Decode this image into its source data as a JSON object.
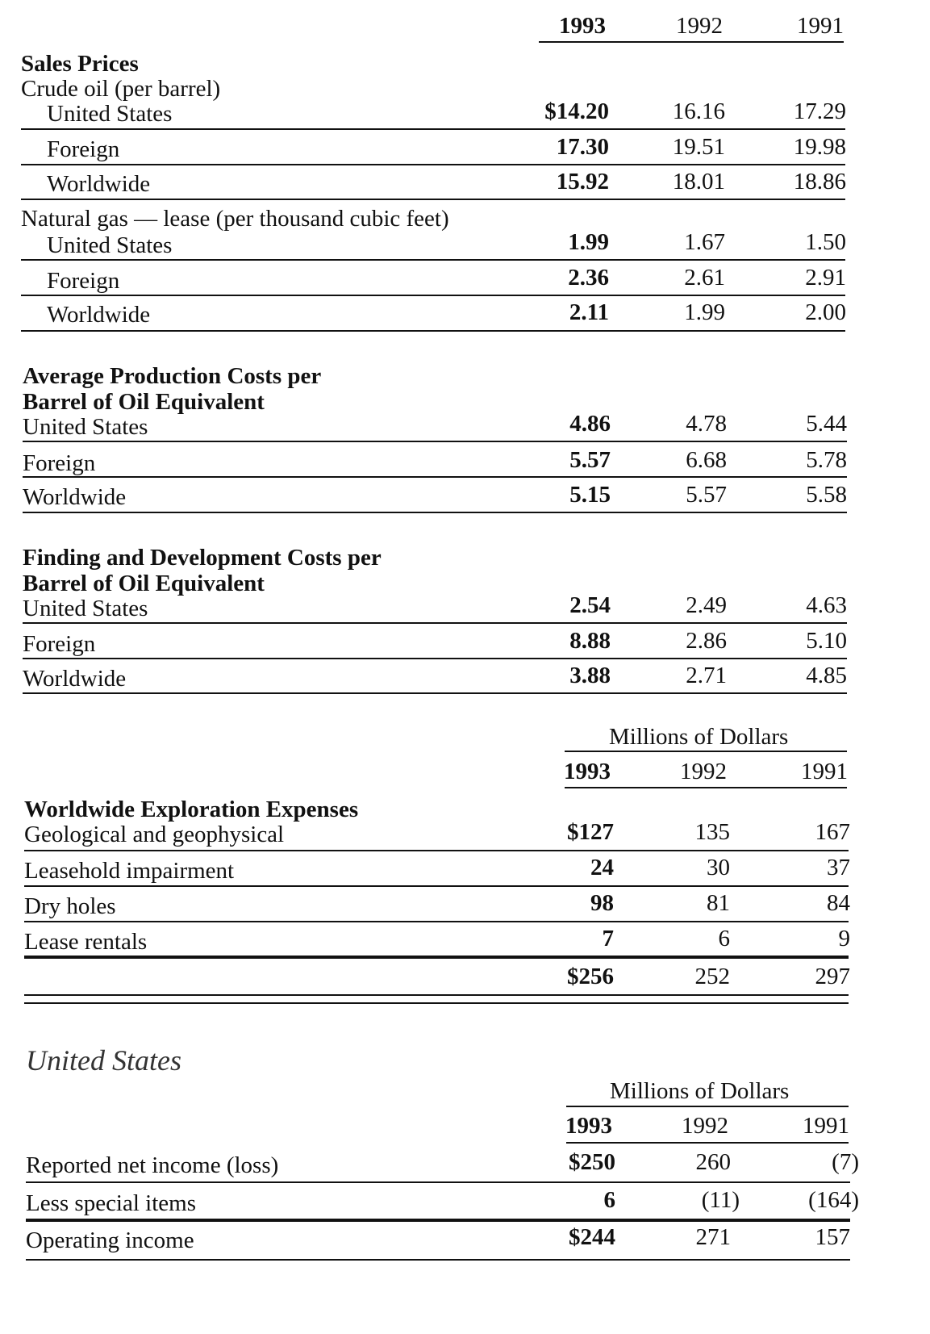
{
  "top_header": {
    "y1993": "1993",
    "y1992": "1992",
    "y1991": "1991"
  },
  "sales_prices": {
    "heading": "Sales Prices",
    "crude_label": "Crude oil (per barrel)",
    "crude_rows": [
      {
        "label": "United States",
        "v1993": "$14.20",
        "v1992": "16.16",
        "v1991": "17.29"
      },
      {
        "label": "Foreign",
        "v1993": "17.30",
        "v1992": "19.51",
        "v1991": "19.98"
      },
      {
        "label": "Worldwide",
        "v1993": "15.92",
        "v1992": "18.01",
        "v1991": "18.86"
      }
    ],
    "gas_label": "Natural gas — lease (per thousand cubic feet)",
    "gas_rows": [
      {
        "label": "United States",
        "v1993": "1.99",
        "v1992": "1.67",
        "v1991": "1.50"
      },
      {
        "label": "Foreign",
        "v1993": "2.36",
        "v1992": "2.61",
        "v1991": "2.91"
      },
      {
        "label": "Worldwide",
        "v1993": "2.11",
        "v1992": "1.99",
        "v1991": "2.00"
      }
    ]
  },
  "production_costs": {
    "heading_line1": "Average Production Costs per",
    "heading_line2": "Barrel of Oil Equivalent",
    "rows": [
      {
        "label": "United States",
        "v1993": "4.86",
        "v1992": "4.78",
        "v1991": "5.44"
      },
      {
        "label": "Foreign",
        "v1993": "5.57",
        "v1992": "6.68",
        "v1991": "5.78"
      },
      {
        "label": "Worldwide",
        "v1993": "5.15",
        "v1992": "5.57",
        "v1991": "5.58"
      }
    ]
  },
  "finding_costs": {
    "heading_line1": "Finding and Development Costs per",
    "heading_line2": "Barrel of Oil Equivalent",
    "rows": [
      {
        "label": "United States",
        "v1993": "2.54",
        "v1992": "2.49",
        "v1991": "4.63"
      },
      {
        "label": "Foreign",
        "v1993": "8.88",
        "v1992": "2.86",
        "v1991": "5.10"
      },
      {
        "label": "Worldwide",
        "v1993": "3.88",
        "v1992": "2.71",
        "v1991": "4.85"
      }
    ]
  },
  "exploration": {
    "units": "Millions of Dollars",
    "y1993": "1993",
    "y1992": "1992",
    "y1991": "1991",
    "heading": "Worldwide Exploration Expenses",
    "rows": [
      {
        "label": "Geological and geophysical",
        "v1993": "$127",
        "v1992": "135",
        "v1991": "167"
      },
      {
        "label": "Leasehold impairment",
        "v1993": "24",
        "v1992": "30",
        "v1991": "37"
      },
      {
        "label": "Dry holes",
        "v1993": "98",
        "v1992": "81",
        "v1991": "84"
      },
      {
        "label": "Lease rentals",
        "v1993": "7",
        "v1992": "6",
        "v1991": "9"
      }
    ],
    "total": {
      "v1993": "$256",
      "v1992": "252",
      "v1991": "297"
    }
  },
  "united_states": {
    "title": "United States",
    "units": "Millions of Dollars",
    "y1993": "1993",
    "y1992": "1992",
    "y1991": "1991",
    "rows": [
      {
        "label": "Reported net income (loss)",
        "v1993": "$250",
        "v1992": "260",
        "v1991": "(7)"
      },
      {
        "label": "Less special items",
        "v1993": "6",
        "v1992": "(11)",
        "v1991": "(164)"
      },
      {
        "label": "Operating income",
        "v1993": "$244",
        "v1992": "271",
        "v1991": "157"
      }
    ]
  }
}
